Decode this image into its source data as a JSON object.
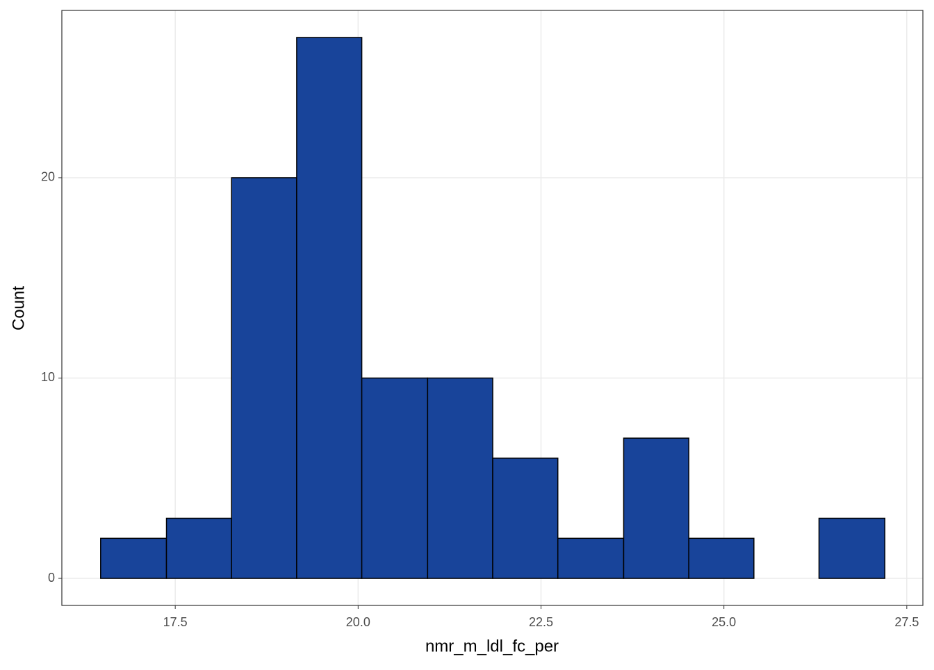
{
  "chart_data": {
    "type": "histogram",
    "x_label": "nmr_m_ldl_fc_per",
    "y_label": "Count",
    "bins": [
      16.48,
      17.38,
      18.27,
      19.16,
      20.05,
      20.95,
      21.84,
      22.73,
      23.63,
      24.52,
      25.41,
      26.3,
      27.2
    ],
    "values": [
      2,
      3,
      20,
      27,
      10,
      10,
      6,
      2,
      7,
      2,
      0,
      3
    ],
    "color": "#18449a",
    "edge_color": "#000000",
    "xlim": [
      15.95,
      27.72
    ],
    "ylim": [
      -1.35,
      28.35
    ],
    "xticks": [
      17.5,
      {
        "value": 20,
        "label": "20.0"
      },
      22.5,
      {
        "value": 25,
        "label": "25.0"
      },
      27.5
    ],
    "yticks": [
      0,
      10,
      20
    ],
    "grid": true
  }
}
